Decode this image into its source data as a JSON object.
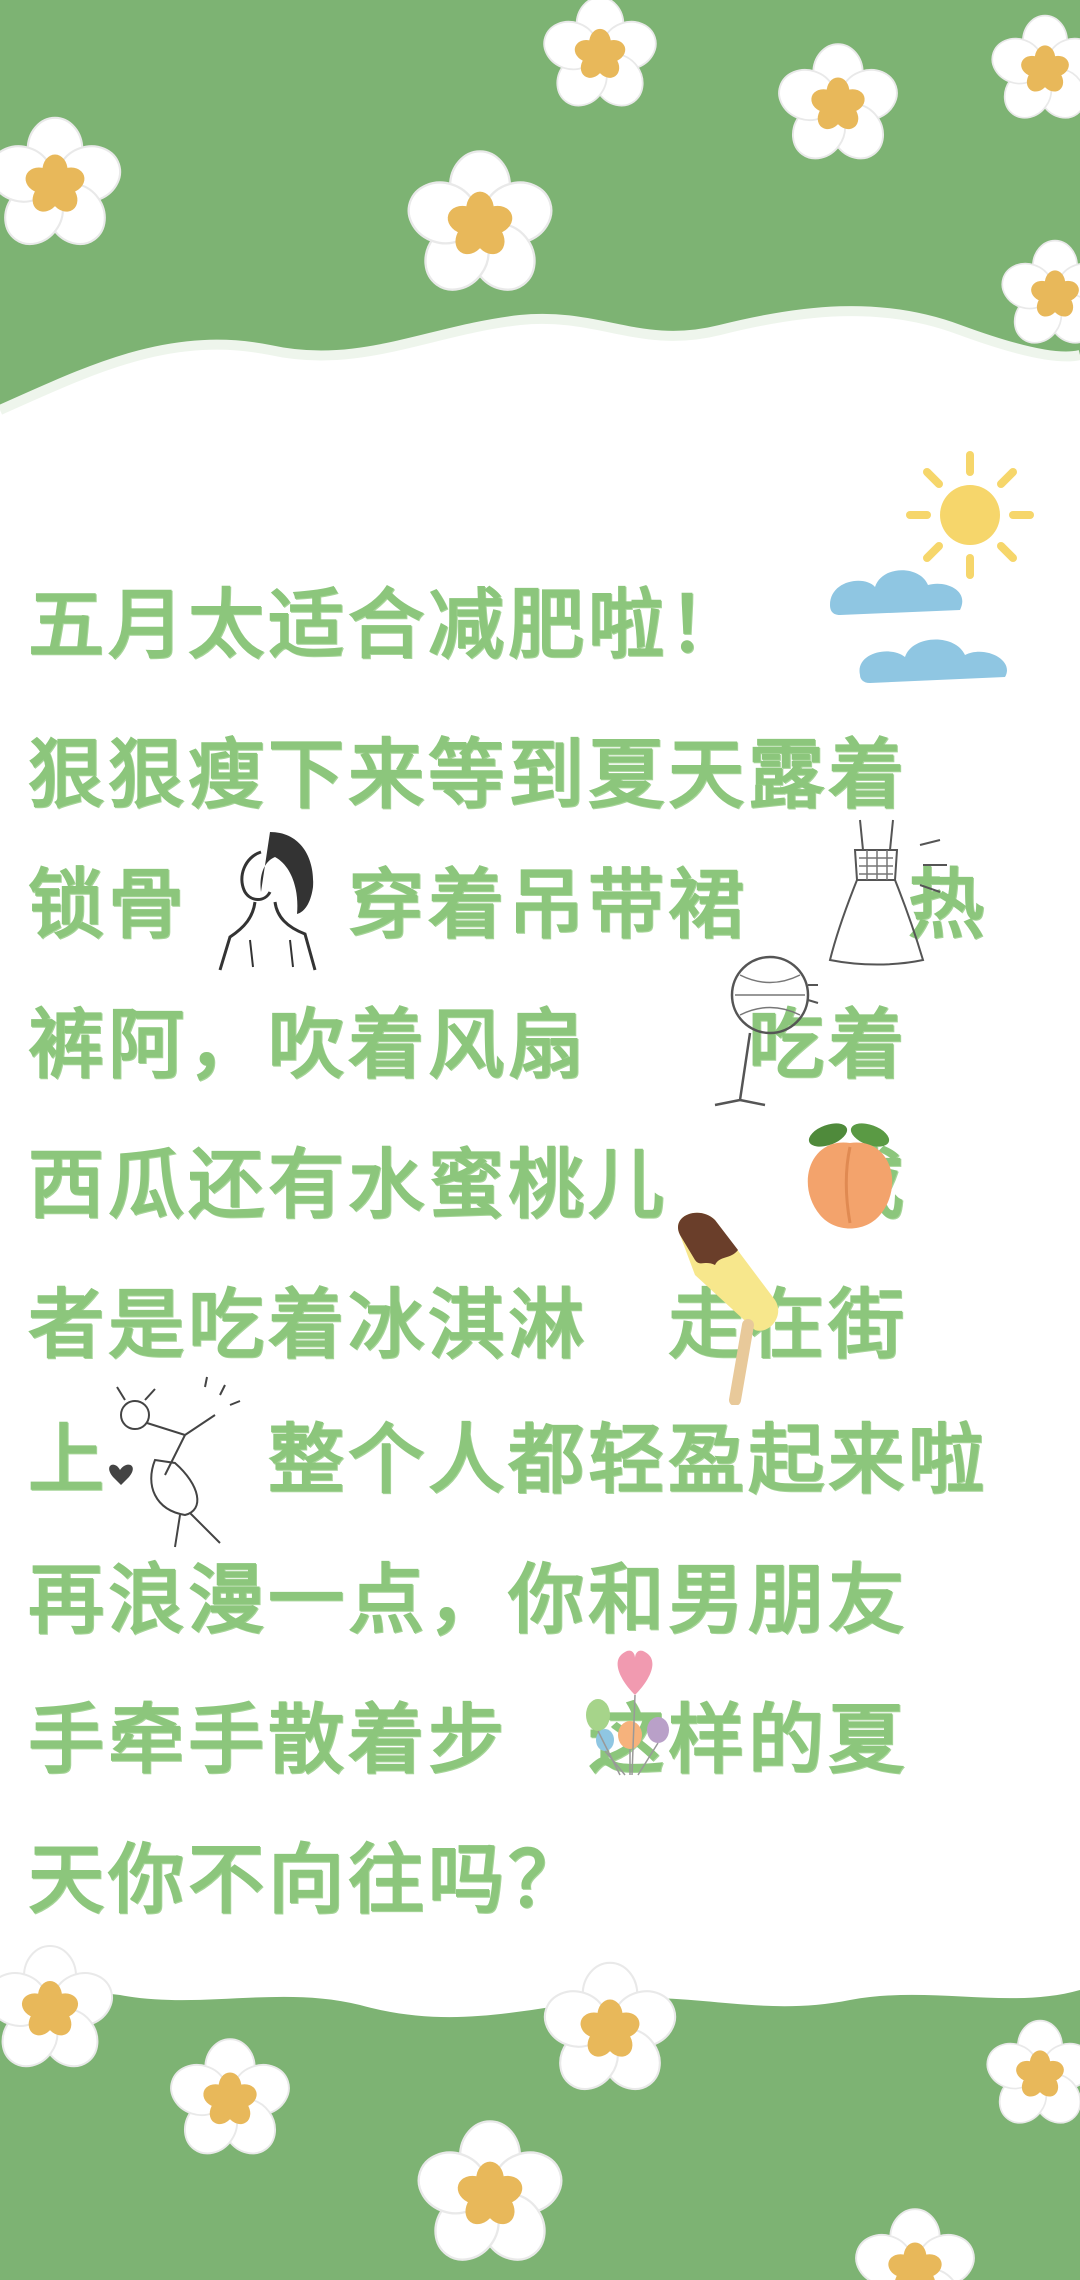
{
  "poem": {
    "lines": [
      "五月太适合减肥啦！",
      "狠狠瘦下来等到夏天露着",
      "锁骨　　穿着吊带裙　　热",
      "裤阿，吹着风扇　　吃着",
      "西瓜还有水蜜桃儿　　或",
      "者是吃着冰淇淋　走在街",
      "上　　整个人都轻盈起来啦",
      "再浪漫一点，你和男朋友",
      "手牵手散着步　这样的夏",
      "天你不向往吗？"
    ]
  },
  "decorations": {
    "icons": [
      "sun-icon",
      "cloud-icon",
      "girl-portrait-icon",
      "sundress-icon",
      "fan-icon",
      "peach-icon",
      "popsicle-icon",
      "dancing-girl-icon",
      "heart-balloons-icon",
      "daisy-icon"
    ]
  },
  "colors": {
    "background_green": "#7db373",
    "paper_white": "#ffffff",
    "text_green": "#8cc67c",
    "flower_center": "#e8b85a",
    "sun_yellow": "#f6d66b",
    "cloud_blue": "#8fc6e2",
    "peach_orange": "#f3a36c"
  }
}
